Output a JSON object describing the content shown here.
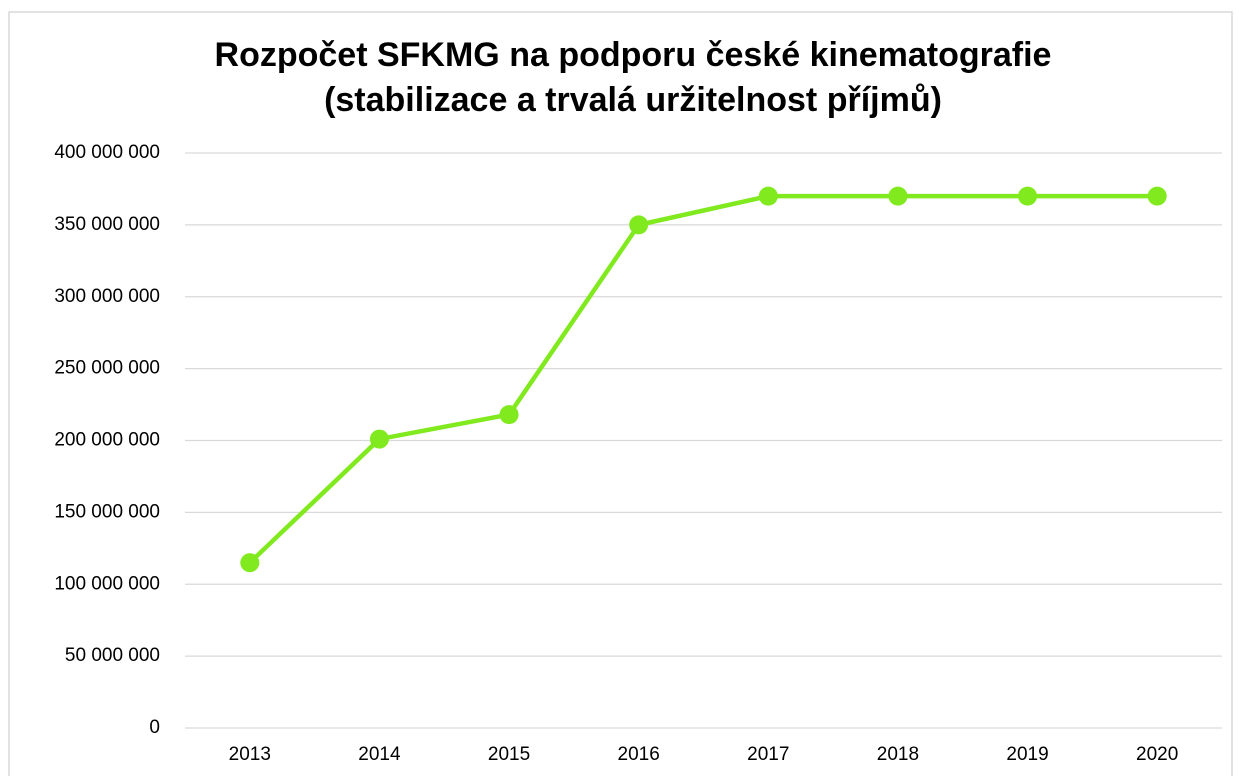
{
  "chart_data": {
    "type": "line",
    "title": [
      "Rozpočet SFKMG na podporu české kinematografie",
      "(stabilizace a trvalá uržitelnost příjmů)"
    ],
    "categories": [
      "2013",
      "2014",
      "2015",
      "2016",
      "2017",
      "2018",
      "2019",
      "2020"
    ],
    "series": [
      {
        "name": "Rozpočet",
        "color": "#80ea1e",
        "values": [
          115000000,
          201000000,
          218000000,
          350000000,
          370000000,
          370000000,
          370000000,
          370000000
        ]
      }
    ],
    "ylim": [
      0,
      400000000
    ],
    "yticks": [
      0,
      {
        "value": 50000000,
        "label": "50 000 000"
      },
      {
        "value": 100000000,
        "label": "100 000 000"
      },
      {
        "value": 150000000,
        "label": "150 000 000"
      },
      {
        "value": 200000000,
        "label": "200 000 000"
      },
      {
        "value": 250000000,
        "label": "250 000 000"
      },
      {
        "value": 300000000,
        "label": "300 000 000"
      },
      {
        "value": 350000000,
        "label": "350 000 000"
      },
      {
        "value": 400000000,
        "label": "400 000 000"
      }
    ],
    "grid": true
  }
}
